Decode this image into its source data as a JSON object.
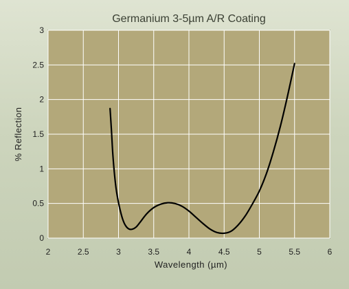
{
  "chart_data": {
    "type": "line",
    "title": "Germanium 3-5µm A/R Coating",
    "xlabel": "Wavelength (µm)",
    "ylabel": "% Reflection",
    "xlim": [
      2,
      6
    ],
    "ylim": [
      0,
      3
    ],
    "xticks": [
      "2",
      "2.5",
      "3",
      "3.5",
      "4",
      "4.5",
      "5",
      "5.5",
      "6"
    ],
    "yticks": [
      "0",
      "0.5",
      "1",
      "1.5",
      "2",
      "2.5",
      "3"
    ],
    "grid": true,
    "series": [
      {
        "values": [
          [
            2.88,
            1.87
          ],
          [
            2.9,
            1.55
          ],
          [
            2.92,
            1.2
          ],
          [
            2.95,
            0.85
          ],
          [
            2.98,
            0.62
          ],
          [
            3.02,
            0.42
          ],
          [
            3.06,
            0.27
          ],
          [
            3.1,
            0.18
          ],
          [
            3.15,
            0.13
          ],
          [
            3.2,
            0.13
          ],
          [
            3.25,
            0.16
          ],
          [
            3.3,
            0.22
          ],
          [
            3.4,
            0.35
          ],
          [
            3.5,
            0.44
          ],
          [
            3.6,
            0.49
          ],
          [
            3.7,
            0.51
          ],
          [
            3.8,
            0.5
          ],
          [
            3.9,
            0.46
          ],
          [
            4.0,
            0.39
          ],
          [
            4.1,
            0.3
          ],
          [
            4.2,
            0.21
          ],
          [
            4.3,
            0.13
          ],
          [
            4.4,
            0.08
          ],
          [
            4.5,
            0.07
          ],
          [
            4.6,
            0.1
          ],
          [
            4.7,
            0.19
          ],
          [
            4.8,
            0.32
          ],
          [
            4.9,
            0.49
          ],
          [
            5.0,
            0.68
          ],
          [
            5.1,
            0.93
          ],
          [
            5.2,
            1.25
          ],
          [
            5.3,
            1.62
          ],
          [
            5.4,
            2.05
          ],
          [
            5.5,
            2.52
          ]
        ],
        "color": "#000000"
      }
    ],
    "plot_background": "#b3a87a",
    "grid_color": "#ffffff"
  }
}
